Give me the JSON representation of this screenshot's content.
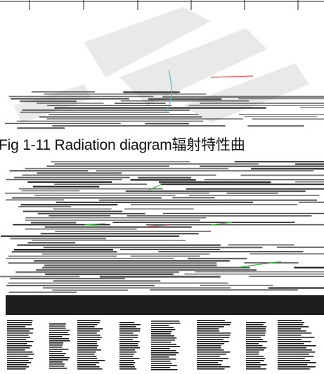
{
  "document": {
    "caption": "Fig 1-11 Radiation diagram辐射特性曲"
  },
  "colors": {
    "stripe": "#1a1a1a",
    "accent_green": "#3cb043",
    "accent_red": "#d94c4c",
    "accent_cyan": "#5fb8c6"
  }
}
